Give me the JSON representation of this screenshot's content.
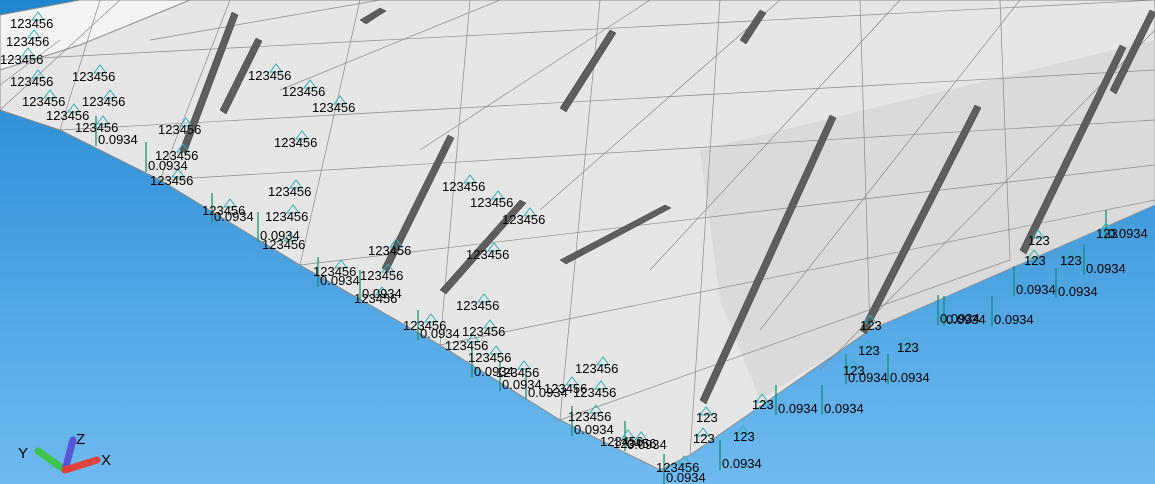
{
  "viewport": {
    "background_top": "#1f85cf",
    "background_bottom": "#6fbaf0",
    "mesh_fill": "#e6e6e6",
    "mesh_line": "#8a8a8a",
    "stiffener_fill": "#5e5e5e",
    "constraint_color": "#2fb0b8",
    "load_color": "#0b8a6a"
  },
  "constraint_labels": {
    "full": "123456",
    "translation": "123"
  },
  "load_label": "0.0934",
  "triad": {
    "x_label": "X",
    "y_label": "Y",
    "z_label": "Z",
    "x_color": "#e0413b",
    "y_color": "#3ec24a",
    "z_color": "#5a55d8"
  }
}
